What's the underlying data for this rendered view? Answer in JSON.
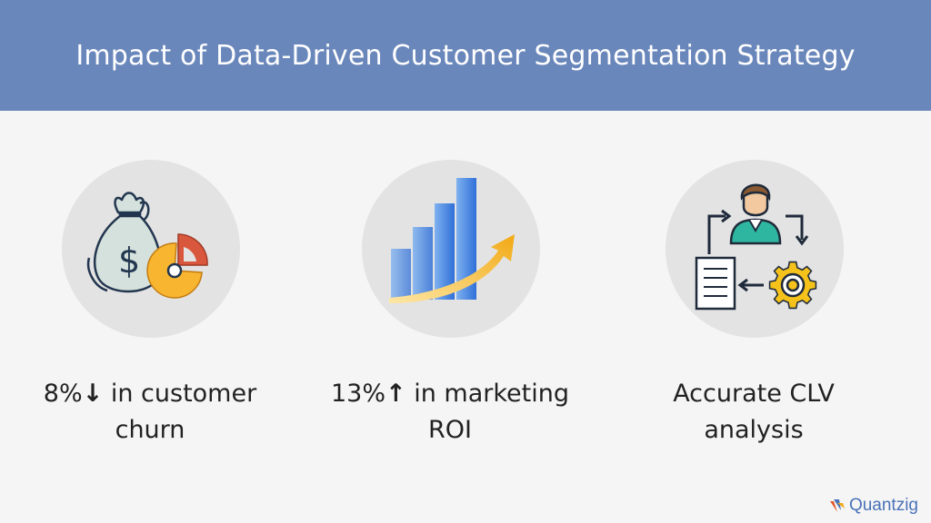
{
  "title": "Impact of Data-Driven Customer Segmentation Strategy",
  "cards": [
    {
      "pre": "8%",
      "arrow": "↓",
      "post": " in customer",
      "line2": "churn",
      "icon": "money-bag-pie-chart-icon"
    },
    {
      "pre": "13%",
      "arrow": "↑",
      "post": " in marketing",
      "line2": "ROI",
      "icon": "growth-bar-chart-icon"
    },
    {
      "line1": "Accurate CLV",
      "line2": "analysis",
      "icon": "customer-gear-document-icon"
    }
  ],
  "logo": {
    "text": "Quantzig"
  },
  "colors": {
    "header": "#6a87bb",
    "background": "#f5f5f5",
    "circle": "#e3e3e3",
    "bar_blue": "#3d7be0",
    "arrow_gold": "#f2b21a",
    "pie_orange": "#f7b530",
    "pie_red": "#d9573d"
  }
}
